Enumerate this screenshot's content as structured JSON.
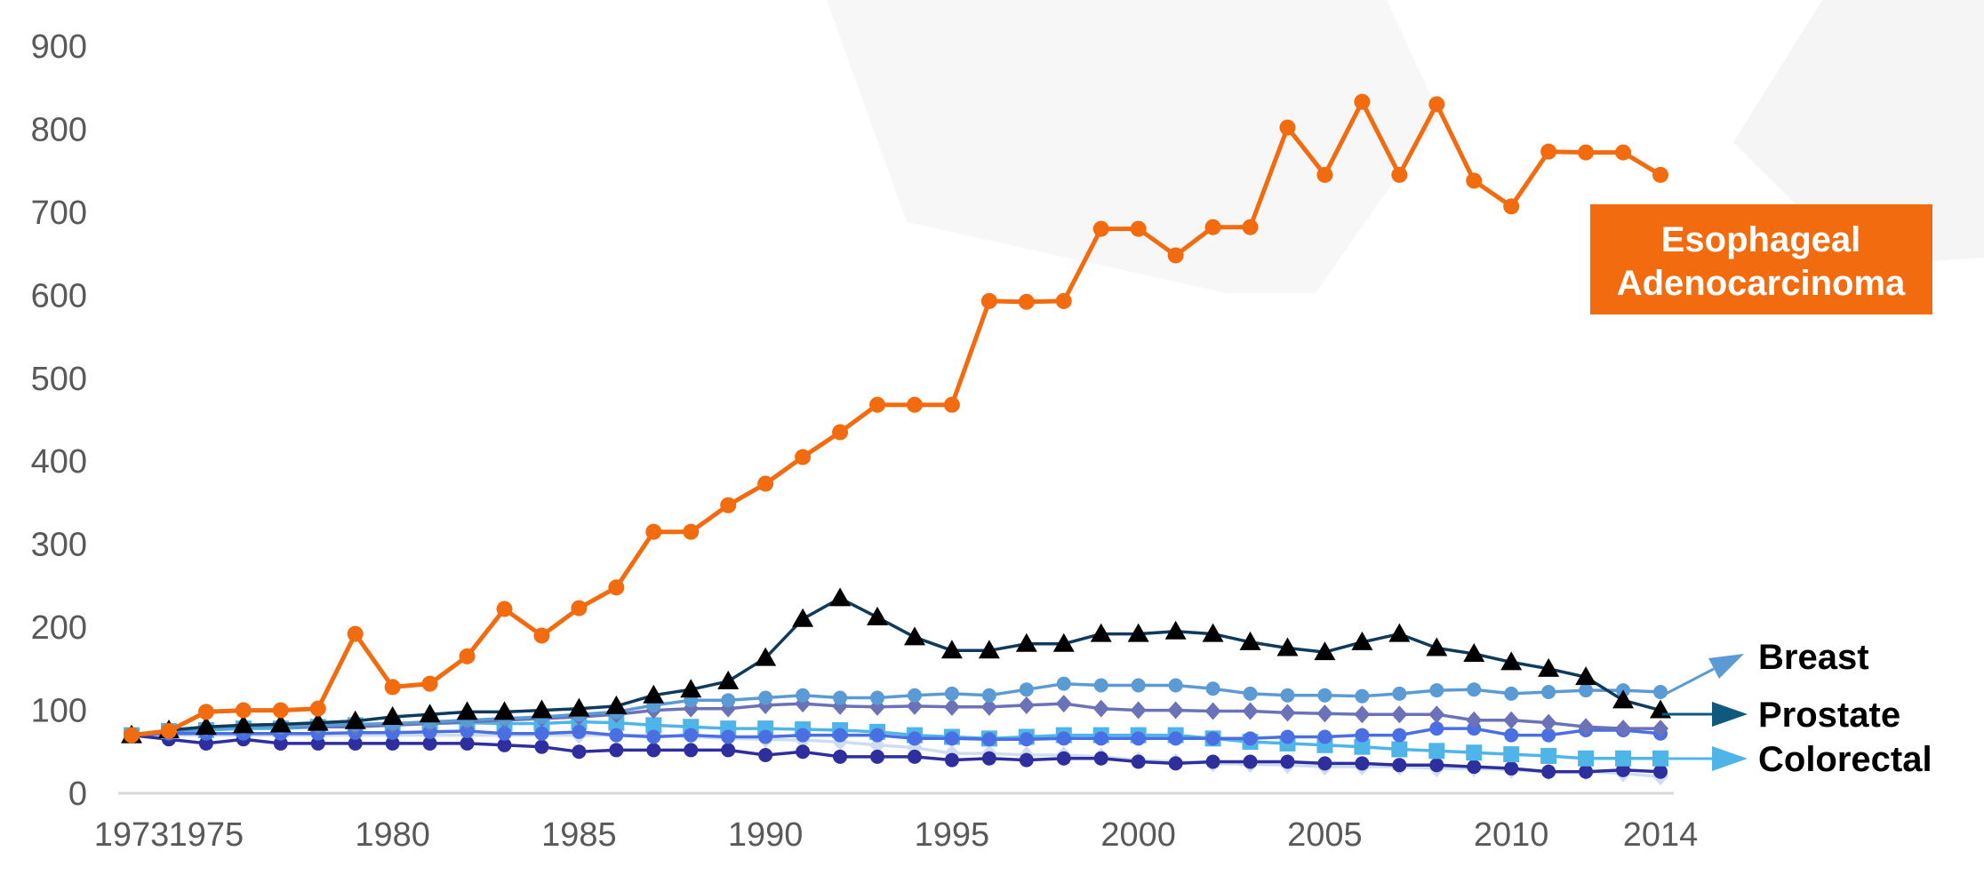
{
  "chart_data": {
    "type": "line",
    "title": "",
    "xlabel": "",
    "ylabel": "",
    "ylim": [
      0,
      900
    ],
    "xlim": [
      1973,
      2014
    ],
    "y_ticks": [
      0,
      100,
      200,
      300,
      400,
      500,
      600,
      700,
      800,
      900
    ],
    "x_tick_labels": [
      "1973",
      "1975",
      "1980",
      "1985",
      "1990",
      "1995",
      "2000",
      "2005",
      "2010",
      "2014"
    ],
    "grid": false,
    "x": [
      1973,
      1974,
      1975,
      1976,
      1977,
      1978,
      1979,
      1980,
      1981,
      1982,
      1983,
      1984,
      1985,
      1986,
      1987,
      1988,
      1989,
      1990,
      1991,
      1992,
      1993,
      1994,
      1995,
      1996,
      1997,
      1998,
      1999,
      2000,
      2001,
      2002,
      2003,
      2004,
      2005,
      2006,
      2007,
      2008,
      2009,
      2010,
      2011,
      2012,
      2013,
      2014
    ],
    "series": [
      {
        "name": "Esophageal Adenocarcinoma",
        "color": "#F26B0F",
        "marker": "circle",
        "values": [
          70,
          75,
          98,
          100,
          100,
          102,
          192,
          128,
          132,
          165,
          222,
          190,
          223,
          248,
          315,
          315,
          347,
          373,
          405,
          435,
          468,
          468,
          468,
          593,
          592,
          593,
          680,
          680,
          648,
          682,
          682,
          802,
          745,
          833,
          745,
          830,
          738,
          707,
          773,
          772,
          772,
          745
        ]
      },
      {
        "name": "",
        "color": "#0E3A5C",
        "marker": "triangle",
        "values": [
          70,
          76,
          80,
          82,
          83,
          85,
          87,
          92,
          95,
          98,
          98,
          100,
          102,
          105,
          118,
          125,
          135,
          163,
          210,
          235,
          212,
          188,
          172,
          172,
          180,
          180,
          192,
          192,
          195,
          192,
          182,
          175,
          170,
          182,
          192,
          175,
          168,
          158,
          150,
          140,
          112,
          100
        ]
      },
      {
        "name": "Breast",
        "color": "#5B9BD5",
        "marker": "circle",
        "values": [
          70,
          76,
          78,
          80,
          80,
          82,
          83,
          84,
          86,
          88,
          90,
          92,
          95,
          98,
          106,
          112,
          112,
          115,
          118,
          115,
          115,
          118,
          120,
          118,
          125,
          132,
          130,
          130,
          130,
          126,
          120,
          118,
          118,
          117,
          120,
          124,
          125,
          120,
          122,
          124,
          124,
          122
        ]
      },
      {
        "name": "",
        "color": "#6B72B8",
        "marker": "diamond",
        "values": [
          70,
          75,
          78,
          80,
          80,
          80,
          80,
          82,
          84,
          86,
          88,
          90,
          92,
          95,
          100,
          102,
          102,
          106,
          108,
          105,
          104,
          105,
          104,
          104,
          106,
          108,
          102,
          100,
          100,
          99,
          99,
          97,
          96,
          95,
          95,
          95,
          88,
          88,
          85,
          80,
          78,
          78
        ]
      },
      {
        "name": "",
        "color": "#4A6FE3",
        "marker": "circle",
        "values": [
          70,
          72,
          72,
          72,
          72,
          72,
          73,
          73,
          74,
          75,
          72,
          72,
          74,
          70,
          68,
          70,
          68,
          68,
          70,
          70,
          70,
          66,
          66,
          65,
          65,
          66,
          66,
          66,
          66,
          66,
          66,
          68,
          68,
          70,
          70,
          78,
          78,
          70,
          70,
          76,
          76,
          72
        ]
      },
      {
        "name": "Colorectal",
        "color": "#4FB5E8",
        "marker": "square",
        "values": [
          70,
          75,
          76,
          78,
          78,
          80,
          82,
          83,
          84,
          85,
          84,
          84,
          86,
          85,
          82,
          80,
          78,
          78,
          77,
          76,
          74,
          70,
          68,
          66,
          68,
          70,
          70,
          70,
          70,
          66,
          62,
          60,
          58,
          56,
          53,
          51,
          49,
          47,
          45,
          42,
          42,
          42
        ]
      },
      {
        "name": "",
        "color": "#2E2E9E",
        "marker": "circle",
        "values": [
          70,
          65,
          60,
          65,
          60,
          60,
          60,
          60,
          60,
          60,
          58,
          56,
          50,
          52,
          52,
          52,
          52,
          46,
          50,
          44,
          44,
          44,
          40,
          42,
          40,
          42,
          42,
          38,
          36,
          38,
          38,
          38,
          36,
          36,
          34,
          34,
          32,
          30,
          26,
          26,
          28,
          26
        ]
      },
      {
        "name": "",
        "color": "#CFDDF0",
        "marker": "diamond",
        "values": [
          70,
          70,
          70,
          70,
          70,
          70,
          70,
          70,
          70,
          70,
          70,
          70,
          70,
          70,
          70,
          68,
          66,
          65,
          64,
          62,
          58,
          55,
          48,
          48,
          46,
          46,
          44,
          40,
          38,
          36,
          35,
          34,
          32,
          32,
          32,
          30,
          30,
          28,
          26,
          26,
          24,
          20
        ]
      }
    ]
  },
  "badge": {
    "line1": "Esophageal",
    "line2": "Adenocarcinoma",
    "color": "#F26B0F"
  },
  "side_labels": {
    "breast": "Breast",
    "prostate": "Prostate",
    "colorectal": "Colorectal"
  },
  "arrow_colors": {
    "breast": "#5B9BD5",
    "prostate": "#0E5A7C",
    "colorectal": "#4FB5E8"
  }
}
